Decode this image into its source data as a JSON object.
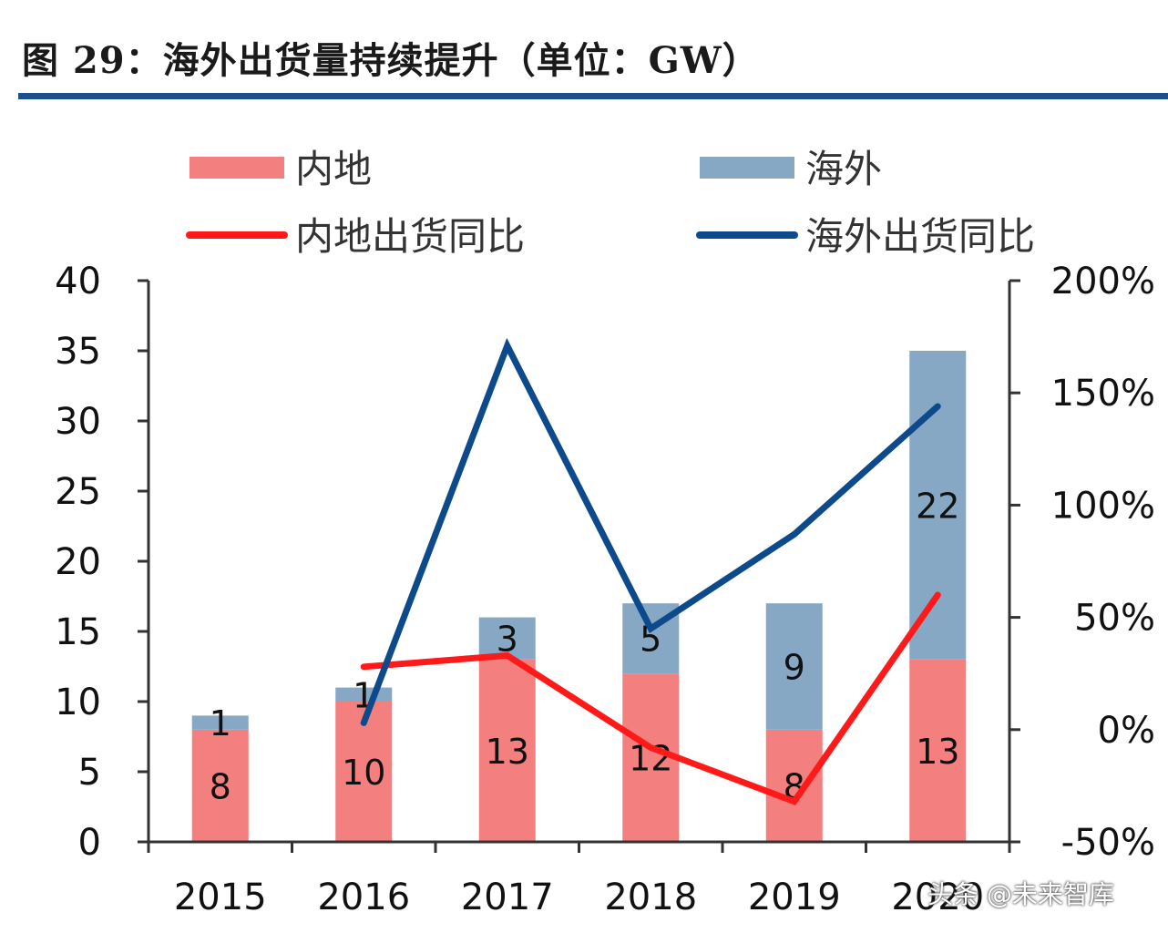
{
  "header": {
    "title": "图 29：海外出货量持续提升（单位：GW）"
  },
  "watermark": "头条 @未来智库",
  "colors": {
    "domestic_bar": "#f47f7f",
    "overseas_bar": "#86a8c4",
    "domestic_line": "#ff1a1a",
    "overseas_line": "#0d4a8c",
    "title_rule": "#1f4e8c"
  },
  "chart_data": {
    "type": "bar",
    "stacked": true,
    "title": "",
    "categories": [
      "2015",
      "2016",
      "2017",
      "2018",
      "2019",
      "2020"
    ],
    "series": [
      {
        "name": "内地",
        "type": "bar",
        "axis": "left",
        "values": [
          8,
          10,
          13,
          12,
          8,
          13
        ]
      },
      {
        "name": "海外",
        "type": "bar",
        "axis": "left",
        "values": [
          1,
          1,
          3,
          5,
          9,
          22
        ]
      },
      {
        "name": "内地出货同比",
        "type": "line",
        "axis": "right",
        "values": [
          null,
          28,
          33,
          -8,
          -32,
          60
        ]
      },
      {
        "name": "海外出货同比",
        "type": "line",
        "axis": "right",
        "values": [
          null,
          3,
          171,
          45,
          87,
          144
        ]
      }
    ],
    "bar_labels": {
      "domestic": [
        "8",
        "10",
        "13",
        "12",
        "8",
        "13"
      ],
      "overseas": [
        "1",
        "1",
        "3",
        "5",
        "9",
        "22"
      ]
    },
    "y_left": {
      "min": 0,
      "max": 40,
      "ticks": [
        "0",
        "5",
        "10",
        "15",
        "20",
        "25",
        "30",
        "35",
        "40"
      ]
    },
    "y_right": {
      "min": -50,
      "max": 200,
      "ticks": [
        "-50%",
        "0%",
        "50%",
        "100%",
        "150%",
        "200%"
      ]
    },
    "legend": {
      "placement": "top",
      "items": [
        {
          "label": "内地",
          "kind": "bar",
          "color": "#f47f7f"
        },
        {
          "label": "海外",
          "kind": "bar",
          "color": "#86a8c4"
        },
        {
          "label": "内地出货同比",
          "kind": "line",
          "color": "#ff1a1a"
        },
        {
          "label": "海外出货同比",
          "kind": "line",
          "color": "#0d4a8c"
        }
      ]
    },
    "grid": false
  }
}
